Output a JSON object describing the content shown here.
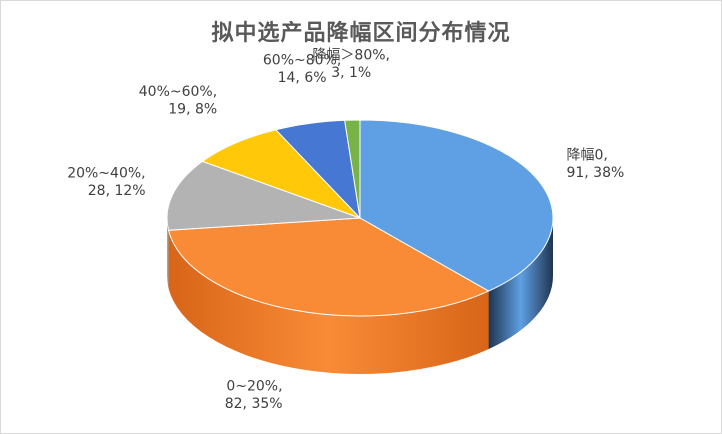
{
  "chart_data": {
    "type": "pie",
    "title": "拟中选产品降幅区间分布情况",
    "slices": [
      {
        "category": "降幅0",
        "value": 91,
        "percent": "38%",
        "label_line1": "降幅0,",
        "label_line2": "91, 38%",
        "color": "#5f9fe3",
        "side_color": "#1f3550"
      },
      {
        "category": "0~20%",
        "value": 82,
        "percent": "35%",
        "label_line1": "0~20%,",
        "label_line2": "82, 35%",
        "color": "#f98b36",
        "side_color": "#d86518"
      },
      {
        "category": "20%~40%",
        "value": 28,
        "percent": "12%",
        "label_line1": "20%~40%,",
        "label_line2": "28, 12%",
        "color": "#b3b3b3",
        "side_color": "#8a8a8a"
      },
      {
        "category": "40%~60%",
        "value": 19,
        "percent": "8%",
        "label_line1": "40%~60%,",
        "label_line2": "19, 8%",
        "color": "#ffc808",
        "side_color": "#c99a00"
      },
      {
        "category": "60%~80%",
        "value": 14,
        "percent": "6%",
        "label_line1": "60%~80%,",
        "label_line2": "14, 6%",
        "color": "#4577d3",
        "side_color": "#2b4f96"
      },
      {
        "category": "降幅＞80%",
        "value": 3,
        "percent": "1%",
        "label_line1": "降幅＞80%,",
        "label_line2": "3, 1%",
        "color": "#77b347",
        "side_color": "#4e7d2a"
      }
    ]
  }
}
